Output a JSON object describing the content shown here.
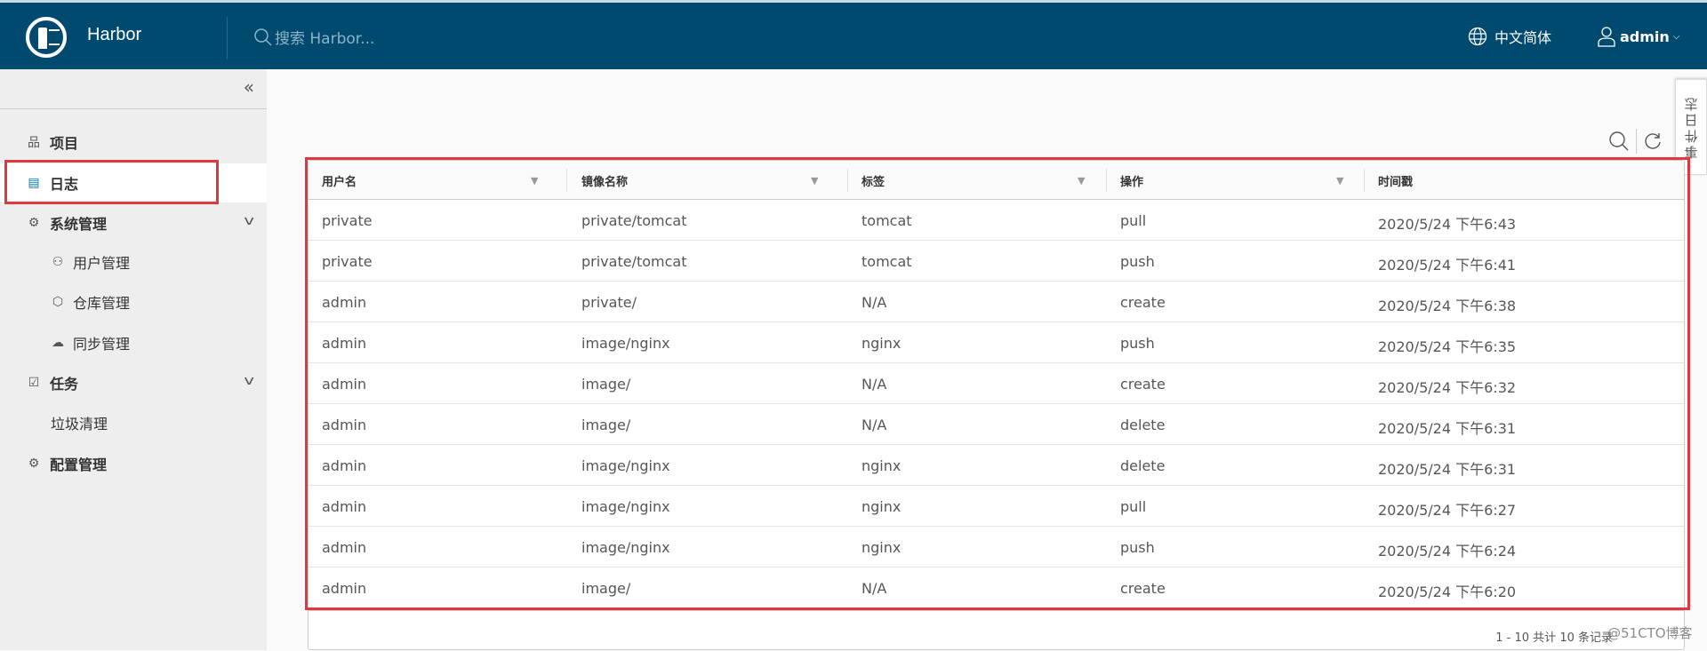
{
  "header": {
    "brand": "Harbor",
    "search_placeholder": "搜索 Harbor...",
    "language": "中文简体",
    "user": "admin"
  },
  "sidebar": {
    "collapse": "«",
    "items": [
      {
        "label": "项目",
        "icon": "project-icon"
      },
      {
        "label": "日志",
        "icon": "log-icon",
        "active": true
      },
      {
        "label": "系统管理",
        "icon": "admin-gear-icon",
        "expanded": true
      },
      {
        "label": "用户管理",
        "icon": "users-icon"
      },
      {
        "label": "仓库管理",
        "icon": "box-icon"
      },
      {
        "label": "同步管理",
        "icon": "cloud-sync-icon"
      },
      {
        "label": "任务",
        "icon": "calendar-check-icon",
        "expanded": true
      },
      {
        "label": "垃圾清理"
      },
      {
        "label": "配置管理",
        "icon": "gear-icon"
      }
    ]
  },
  "side_tab": "事件日志",
  "table": {
    "columns": [
      "用户名",
      "镜像名称",
      "标签",
      "操作",
      "时间戳"
    ],
    "rows": [
      [
        "private",
        "private/tomcat",
        "tomcat",
        "pull",
        "2020/5/24 下午6:43"
      ],
      [
        "private",
        "private/tomcat",
        "tomcat",
        "push",
        "2020/5/24 下午6:41"
      ],
      [
        "admin",
        "private/",
        "N/A",
        "create",
        "2020/5/24 下午6:38"
      ],
      [
        "admin",
        "image/nginx",
        "nginx",
        "push",
        "2020/5/24 下午6:35"
      ],
      [
        "admin",
        "image/",
        "N/A",
        "create",
        "2020/5/24 下午6:32"
      ],
      [
        "admin",
        "image/",
        "N/A",
        "delete",
        "2020/5/24 下午6:31"
      ],
      [
        "admin",
        "image/nginx",
        "nginx",
        "delete",
        "2020/5/24 下午6:31"
      ],
      [
        "admin",
        "image/nginx",
        "nginx",
        "pull",
        "2020/5/24 下午6:27"
      ],
      [
        "admin",
        "image/nginx",
        "nginx",
        "push",
        "2020/5/24 下午6:24"
      ],
      [
        "admin",
        "image/",
        "N/A",
        "create",
        "2020/5/24 下午6:20"
      ]
    ],
    "footer": "1 - 10 共计 10 条记录"
  },
  "watermark": "@51CTO博客",
  "colors": {
    "header": "#004a70",
    "highlight": "#e0383e"
  }
}
